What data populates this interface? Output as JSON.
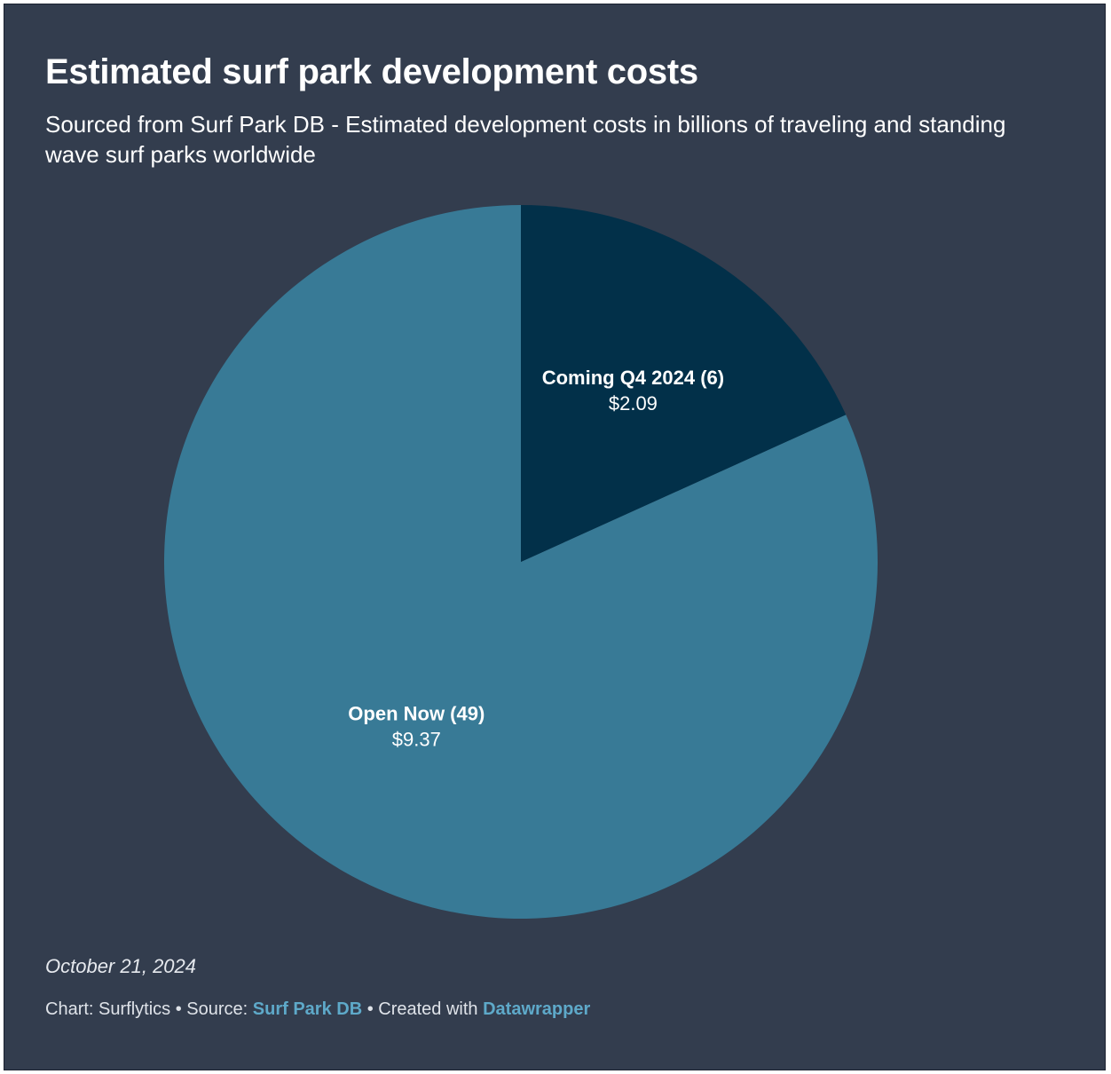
{
  "title": "Estimated surf park development costs",
  "subtitle": "Sourced from Surf Park DB - Estimated development costs in billions of traveling and standing wave surf parks worldwide",
  "date": "October 21, 2024",
  "footer": {
    "chart_prefix": "Chart: ",
    "chart_by": "Surflytics",
    "separator": " • ",
    "source_prefix": "Source: ",
    "source": "Surf Park DB",
    "created_prefix": "Created with ",
    "created_with": "Datawrapper",
    "link_color": "#5ea9c9"
  },
  "colors": {
    "background": "#333d4e",
    "text": "#ffffff"
  },
  "chart_data": {
    "type": "pie",
    "start_angle_deg": 0,
    "direction": "counterclockwise",
    "slices": [
      {
        "label": "Open Now (49)",
        "value": 9.37,
        "display": "$9.37",
        "color": "#387a96"
      },
      {
        "label": "Coming Q4 2024 (6)",
        "value": 2.09,
        "display": "$2.09",
        "color": "#023049"
      }
    ]
  }
}
